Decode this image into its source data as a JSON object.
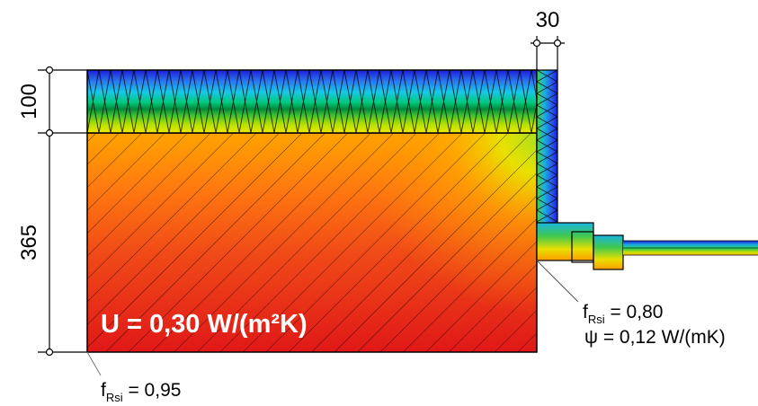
{
  "dimensions": {
    "insulation_thickness": "100",
    "wall_thickness": "365",
    "edge_insulation_thickness": "30"
  },
  "u_value": "U = 0,30 W/(m²K)",
  "corner_labels": {
    "frsi_prefix": "f",
    "frsi_subscript": "Rsi",
    "frsi_value": " = 0,80",
    "psi_symbol": "ψ",
    "psi_value": " = 0,12 W/(mK)"
  },
  "bottom_left_labels": {
    "frsi_prefix": "f",
    "frsi_subscript": "Rsi",
    "frsi_value": " = 0,95"
  },
  "colors": {
    "cold": "#1a1ae6",
    "cool": "#00b4e6",
    "mid_cool": "#00c878",
    "mid": "#e6e600",
    "warm": "#ff9600",
    "hot": "#e61e1e",
    "u_value_text": "#ffffff"
  }
}
